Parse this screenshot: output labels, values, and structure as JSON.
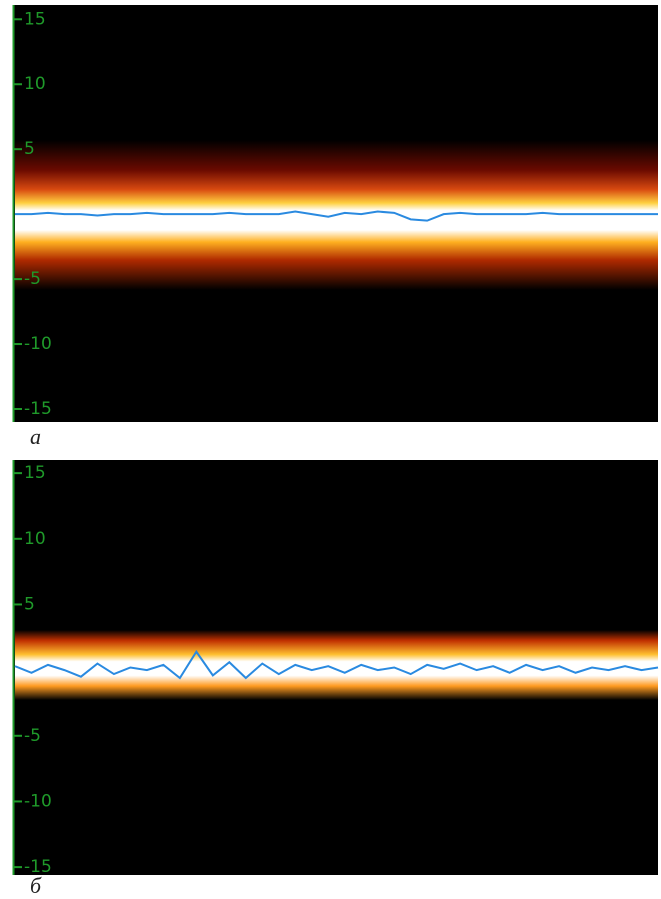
{
  "chart_data": [
    {
      "type": "line",
      "caption": "a",
      "ylim": [
        -16,
        16.1
      ],
      "yticks": [
        15,
        10,
        5,
        -5,
        -10,
        -15
      ],
      "grid": false,
      "series": [
        {
          "color": "#2a8ae0",
          "values": [
            0,
            0,
            0.1,
            0,
            0,
            -0.1,
            0,
            0,
            0.1,
            0,
            0,
            0,
            0,
            0.1,
            0,
            0,
            0,
            0.2,
            0,
            -0.2,
            0.1,
            0,
            0.2,
            0.1,
            -0.4,
            -0.5,
            0,
            0.1,
            0,
            0,
            0,
            0,
            0.1,
            0,
            0,
            0,
            0,
            0,
            0,
            0
          ]
        }
      ]
    },
    {
      "type": "line",
      "caption": "б",
      "ylim": [
        -15.6,
        16
      ],
      "yticks": [
        15,
        10,
        5,
        -5,
        -10,
        -15
      ],
      "grid": false,
      "series": [
        {
          "color": "#2a8ae0",
          "values": [
            0.3,
            -0.2,
            0.4,
            0,
            -0.5,
            0.5,
            -0.3,
            0.2,
            0,
            0.4,
            -0.6,
            1.4,
            -0.4,
            0.6,
            -0.6,
            0.5,
            -0.3,
            0.4,
            0,
            0.3,
            -0.2,
            0.4,
            0,
            0.2,
            -0.3,
            0.4,
            0.1,
            0.5,
            0,
            0.3,
            -0.2,
            0.4,
            0,
            0.3,
            -0.2,
            0.2,
            0,
            0.3,
            0,
            0.2
          ]
        }
      ]
    }
  ]
}
